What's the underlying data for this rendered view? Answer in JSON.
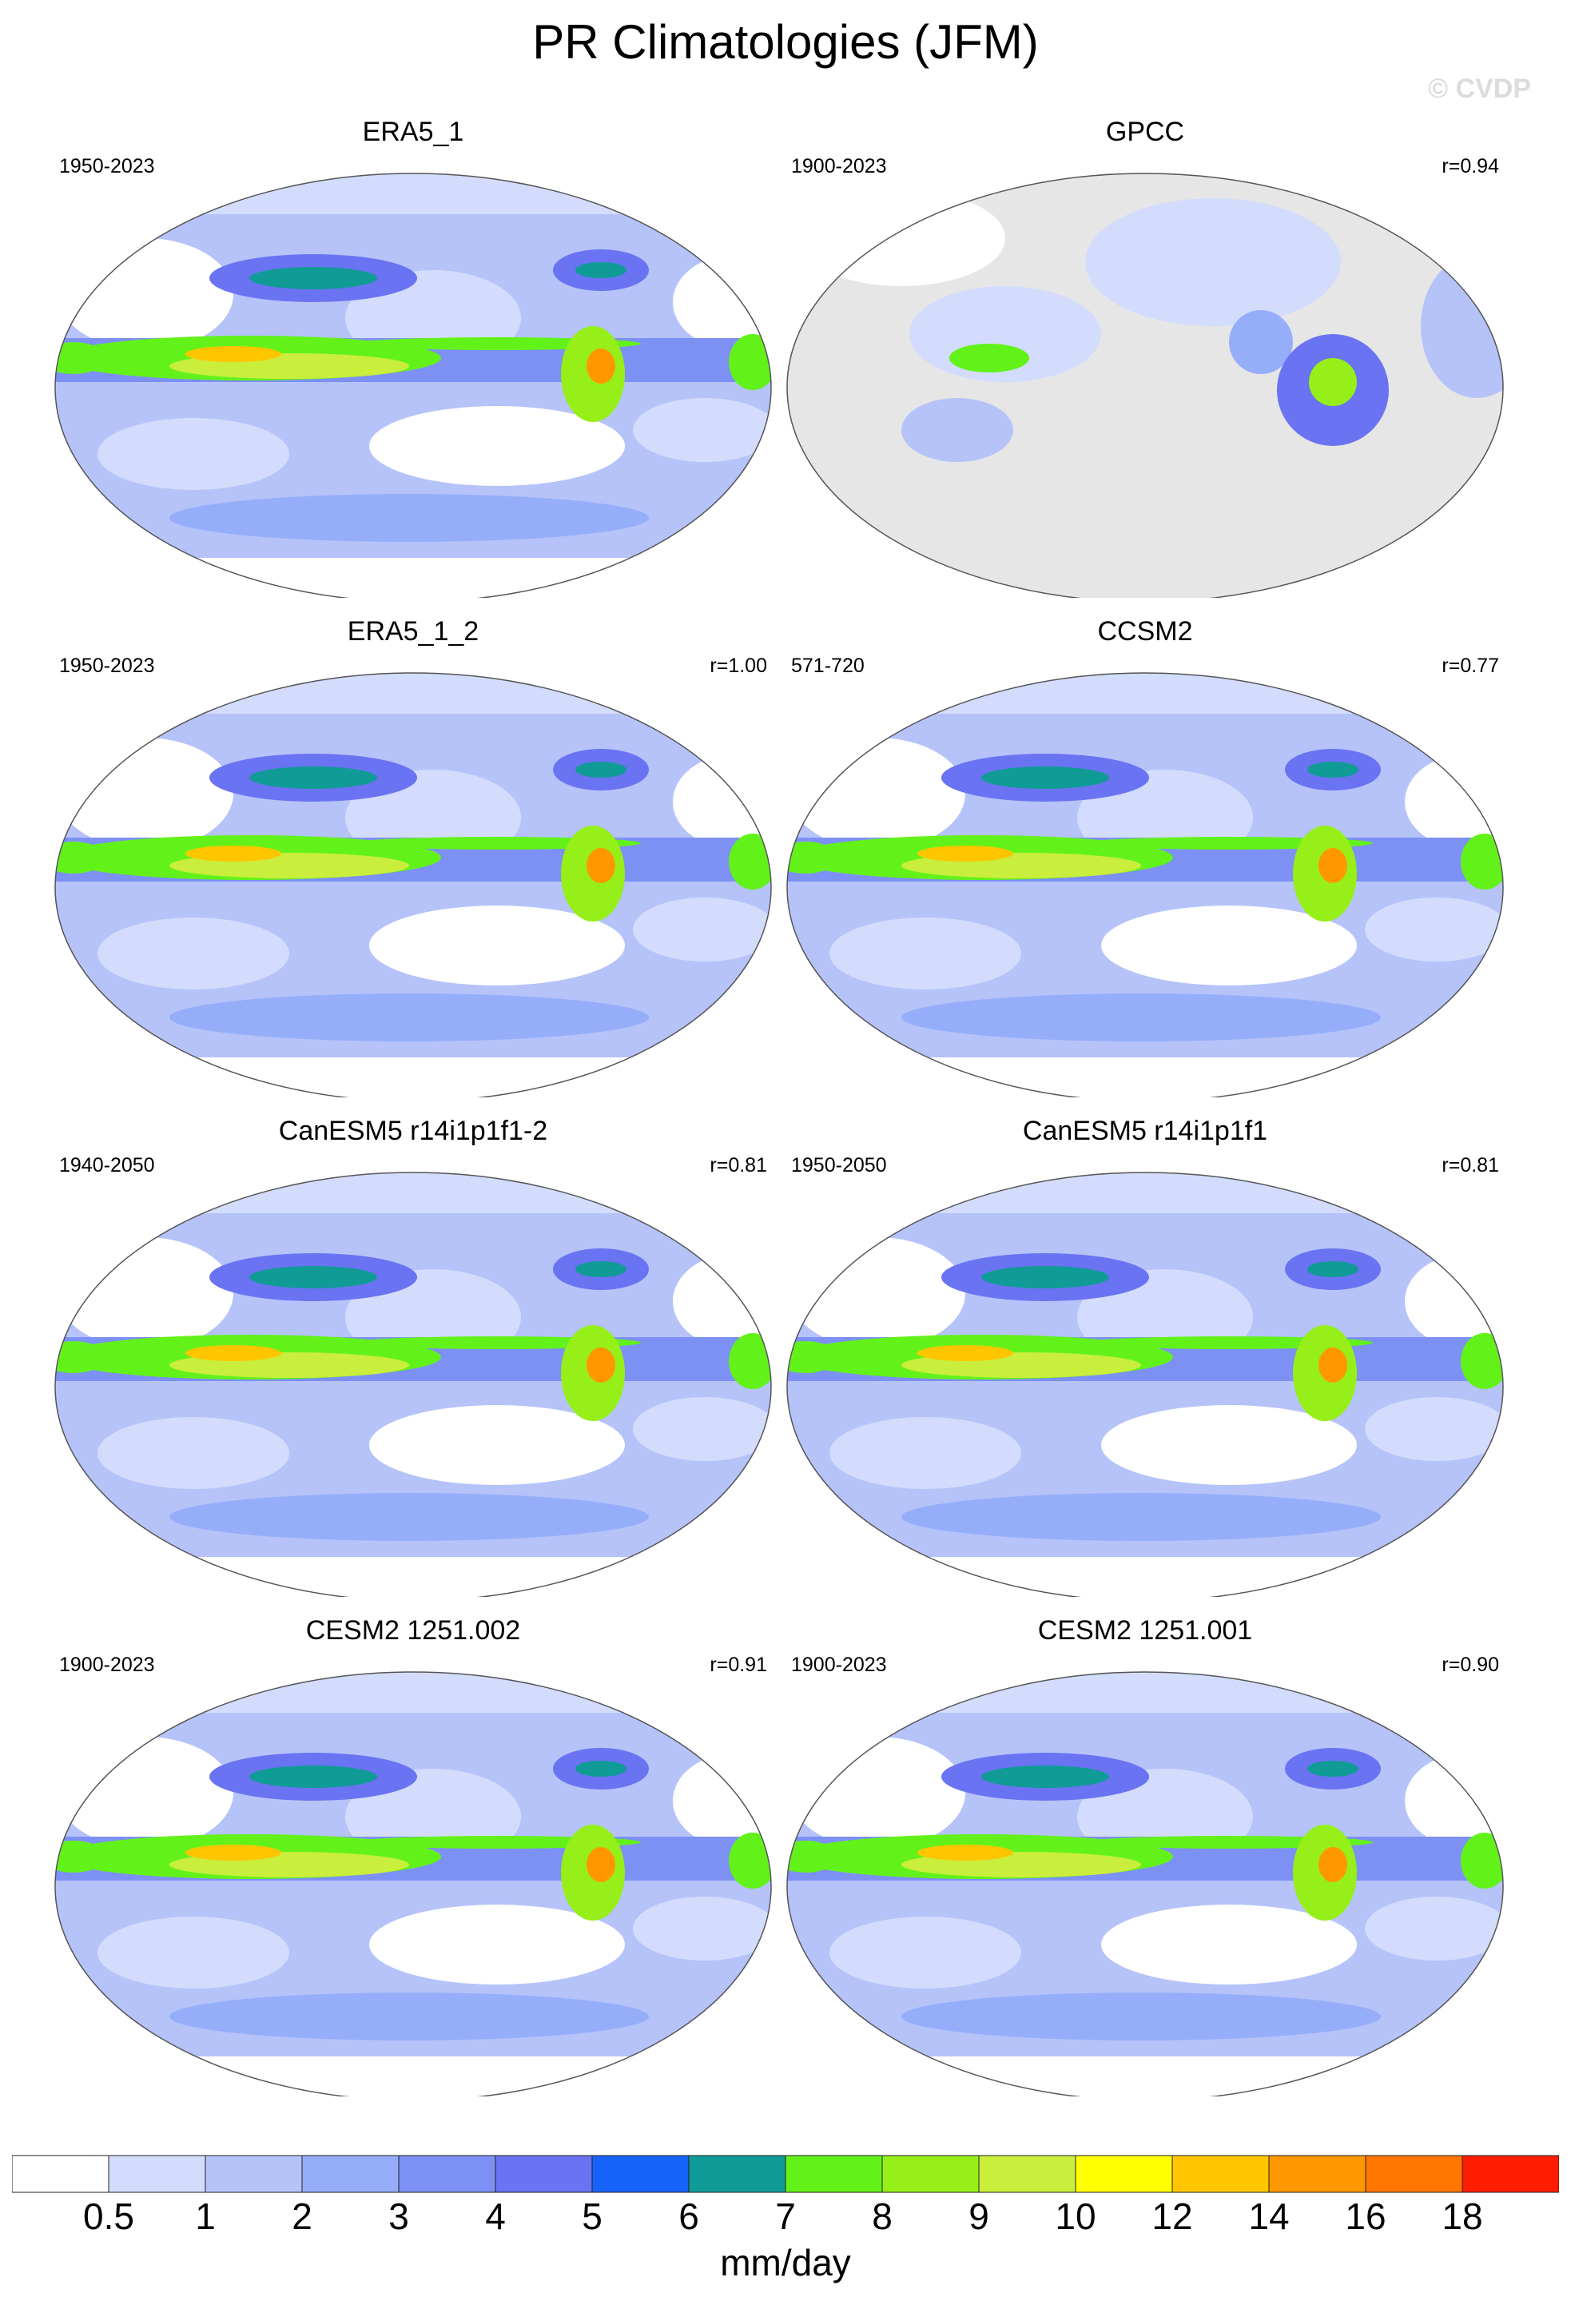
{
  "title": "PR Climatologies (JFM)",
  "watermark": "© CVDP",
  "colorbar": {
    "colors": [
      "#ffffff",
      "#d3dcfc",
      "#b5c3f9",
      "#96aefa",
      "#7d90f4",
      "#6a73f2",
      "#1762f9",
      "#109b96",
      "#62f21a",
      "#96ef18",
      "#c9ee3c",
      "#ffff01",
      "#ffc600",
      "#ff9800",
      "#ff7500",
      "#ff1c00"
    ],
    "labels": [
      "0.5",
      "1",
      "2",
      "3",
      "4",
      "5",
      "6",
      "7",
      "8",
      "9",
      "10",
      "12",
      "14",
      "16",
      "18"
    ],
    "units": "mm/day"
  },
  "panels": [
    {
      "title": "ERA5_1",
      "years": "1950-2023",
      "corr": "",
      "ocean_data": true
    },
    {
      "title": "GPCC",
      "years": "1900-2023",
      "corr": "r=0.94",
      "ocean_data": false
    },
    {
      "title": "ERA5_1_2",
      "years": "1950-2023",
      "corr": "r=1.00",
      "ocean_data": true
    },
    {
      "title": "CCSM2",
      "years": "571-720",
      "corr": "r=0.77",
      "ocean_data": true
    },
    {
      "title": "CanESM5 r14i1p1f1-2",
      "years": "1940-2050",
      "corr": "r=0.81",
      "ocean_data": true
    },
    {
      "title": "CanESM5 r14i1p1f1",
      "years": "1950-2050",
      "corr": "r=0.81",
      "ocean_data": true
    },
    {
      "title": "CESM2 1251.002",
      "years": "1900-2023",
      "corr": "r=0.91",
      "ocean_data": true
    },
    {
      "title": "CESM2 1251.001",
      "years": "1900-2023",
      "corr": "r=0.90",
      "ocean_data": true
    }
  ]
}
